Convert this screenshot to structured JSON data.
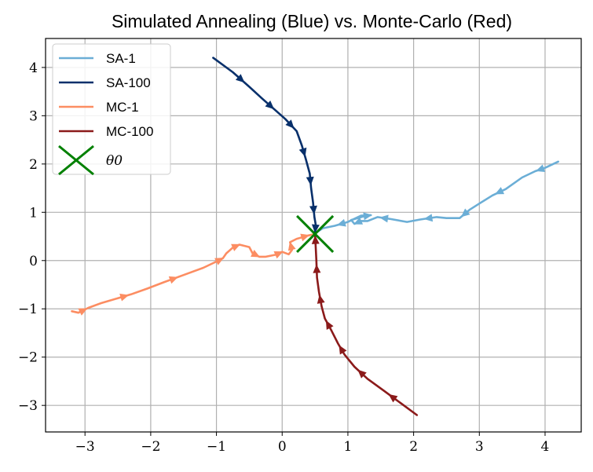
{
  "chart_data": {
    "type": "line",
    "title": "Simulated Annealing (Blue) vs. Monte-Carlo (Red)",
    "xlabel": "",
    "ylabel": "",
    "xlim": [
      -3.6,
      4.55
    ],
    "ylim": [
      -3.55,
      4.6
    ],
    "xticks": [
      -3,
      -2,
      -1,
      0,
      1,
      2,
      3,
      4
    ],
    "yticks": [
      -3,
      -2,
      -1,
      0,
      1,
      2,
      3,
      4
    ],
    "xtick_labels": [
      "−3",
      "−2",
      "−1",
      "0",
      "1",
      "2",
      "3",
      "4"
    ],
    "ytick_labels": [
      "−3",
      "−2",
      "−1",
      "0",
      "1",
      "2",
      "3",
      "4"
    ],
    "grid": true,
    "legend_position": "top-left",
    "series": [
      {
        "name": "SA-1",
        "color": "#6baed6",
        "arrow_interval": 3,
        "points": [
          [
            4.2,
            2.05
          ],
          [
            4.0,
            1.92
          ],
          [
            3.85,
            1.85
          ],
          [
            3.65,
            1.72
          ],
          [
            3.4,
            1.48
          ],
          [
            3.2,
            1.35
          ],
          [
            3.0,
            1.18
          ],
          [
            2.85,
            1.05
          ],
          [
            2.7,
            0.88
          ],
          [
            2.5,
            0.88
          ],
          [
            2.35,
            0.9
          ],
          [
            2.1,
            0.85
          ],
          [
            1.9,
            0.8
          ],
          [
            1.65,
            0.86
          ],
          [
            1.45,
            0.9
          ],
          [
            1.3,
            0.82
          ],
          [
            1.2,
            0.82
          ],
          [
            1.1,
            0.76
          ],
          [
            1.05,
            0.84
          ],
          [
            1.25,
            0.92
          ],
          [
            1.35,
            0.94
          ],
          [
            1.2,
            0.93
          ],
          [
            1.0,
            0.8
          ],
          [
            0.8,
            0.72
          ],
          [
            0.62,
            0.67
          ],
          [
            0.52,
            0.58
          ]
        ]
      },
      {
        "name": "SA-100",
        "color": "#08306b",
        "arrow_interval": 2,
        "points": [
          [
            -1.05,
            4.2
          ],
          [
            -0.75,
            3.9
          ],
          [
            -0.5,
            3.6
          ],
          [
            -0.3,
            3.35
          ],
          [
            -0.05,
            3.05
          ],
          [
            0.05,
            2.93
          ],
          [
            0.22,
            2.68
          ],
          [
            0.3,
            2.38
          ],
          [
            0.36,
            2.1
          ],
          [
            0.42,
            1.8
          ],
          [
            0.44,
            1.5
          ],
          [
            0.47,
            1.2
          ],
          [
            0.49,
            0.9
          ],
          [
            0.51,
            0.75
          ],
          [
            0.5,
            0.58
          ]
        ]
      },
      {
        "name": "MC-1",
        "color": "#fc8d62",
        "arrow_interval": 3,
        "points": [
          [
            -3.2,
            -1.05
          ],
          [
            -3.1,
            -1.08
          ],
          [
            -2.95,
            -0.98
          ],
          [
            -2.75,
            -0.88
          ],
          [
            -2.5,
            -0.78
          ],
          [
            -2.3,
            -0.7
          ],
          [
            -2.05,
            -0.58
          ],
          [
            -1.8,
            -0.45
          ],
          [
            -1.5,
            -0.3
          ],
          [
            -1.2,
            -0.15
          ],
          [
            -1.0,
            -0.02
          ],
          [
            -0.9,
            0.05
          ],
          [
            -0.85,
            0.15
          ],
          [
            -0.75,
            0.27
          ],
          [
            -0.65,
            0.33
          ],
          [
            -0.5,
            0.28
          ],
          [
            -0.45,
            0.15
          ],
          [
            -0.35,
            0.08
          ],
          [
            -0.25,
            0.08
          ],
          [
            -0.1,
            0.12
          ],
          [
            0.0,
            0.18
          ],
          [
            0.1,
            0.13
          ],
          [
            0.15,
            0.22
          ],
          [
            0.12,
            0.38
          ],
          [
            0.22,
            0.45
          ],
          [
            0.3,
            0.48
          ],
          [
            0.4,
            0.52
          ],
          [
            0.5,
            0.55
          ]
        ]
      },
      {
        "name": "MC-100",
        "color": "#8b1a1a",
        "arrow_interval": 2,
        "points": [
          [
            2.05,
            -3.2
          ],
          [
            1.8,
            -2.95
          ],
          [
            1.55,
            -2.7
          ],
          [
            1.3,
            -2.45
          ],
          [
            1.1,
            -2.2
          ],
          [
            0.95,
            -1.95
          ],
          [
            0.85,
            -1.72
          ],
          [
            0.75,
            -1.45
          ],
          [
            0.65,
            -1.2
          ],
          [
            0.6,
            -0.95
          ],
          [
            0.56,
            -0.65
          ],
          [
            0.53,
            -0.35
          ],
          [
            0.52,
            0.0
          ],
          [
            0.51,
            0.3
          ],
          [
            0.5,
            0.55
          ]
        ]
      }
    ],
    "theta0": {
      "name": "θ0",
      "x": 0.5,
      "y": 0.55,
      "color": "#008000"
    }
  }
}
